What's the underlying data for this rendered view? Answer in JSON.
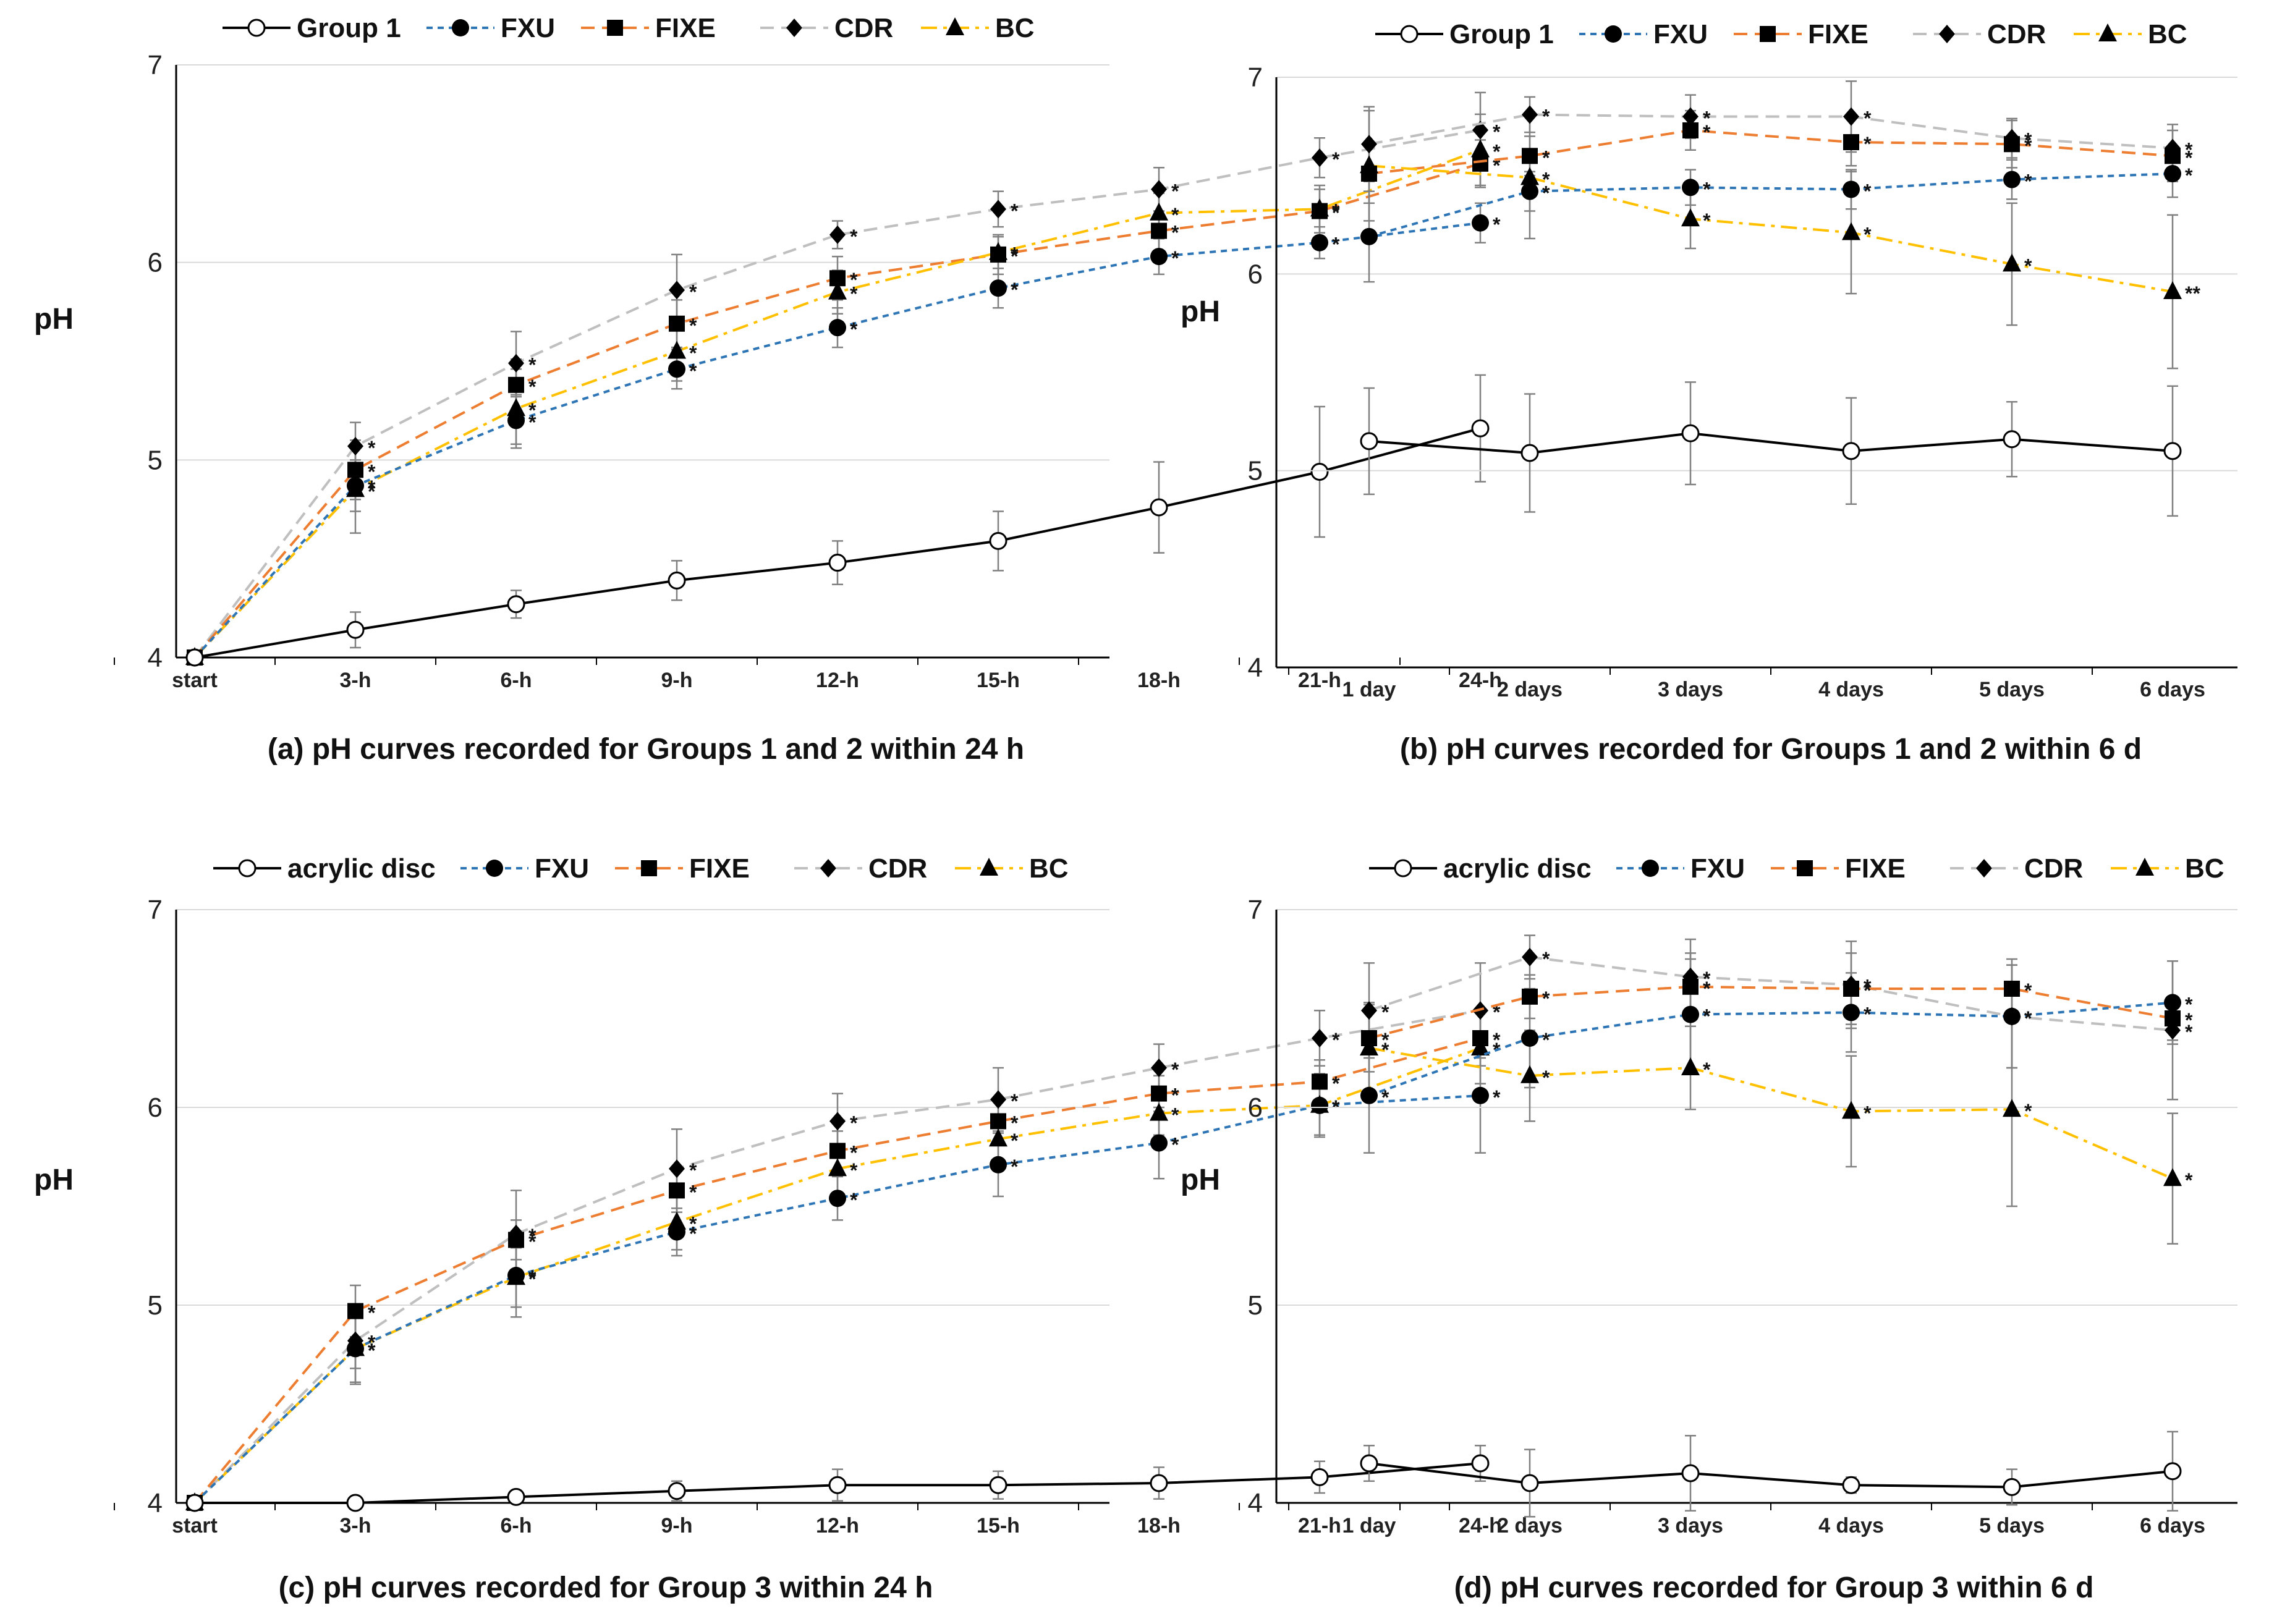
{
  "colors": {
    "group1": "#000000",
    "FXU": "#2e75b6",
    "FIXE": "#ed7d31",
    "CDR": "#bfbfbf",
    "BC": "#ffc000",
    "grid": "#d9d9d9",
    "errorbar": "#808080"
  },
  "chart_data": [
    {
      "id": "a",
      "type": "line",
      "caption": "(a) pH curves recorded for Groups 1 and 2 within 24 h",
      "ylabel": "pH",
      "ylim": [
        4,
        7
      ],
      "yticks": [
        "4",
        "5",
        "6",
        "7"
      ],
      "categories": [
        "start",
        "3-h",
        "6-h",
        "9-h",
        "12-h",
        "15-h",
        "18-h",
        "21-h",
        "24-h"
      ],
      "series": [
        {
          "key": "group1",
          "name": "Group  1",
          "marker": "circle-open",
          "dash": "solid",
          "values": [
            4.0,
            4.14,
            4.27,
            4.39,
            4.48,
            4.59,
            4.76,
            4.94,
            5.16
          ],
          "errors": [
            0,
            0.09,
            0.07,
            0.1,
            0.11,
            0.15,
            0.23,
            0.33,
            0.27
          ],
          "stars": [
            "",
            "",
            "",
            "",
            "",
            "",
            "",
            "",
            ""
          ]
        },
        {
          "key": "FXU",
          "name": "FXU",
          "marker": "circle",
          "dash": "dash",
          "values": [
            4.0,
            4.87,
            5.2,
            5.46,
            5.67,
            5.87,
            6.03,
            6.1,
            6.2
          ],
          "errors": [
            0,
            0.13,
            0.12,
            0.1,
            0.1,
            0.1,
            0.09,
            0.08,
            0.1
          ],
          "stars": [
            "",
            "*",
            "*",
            "*",
            "*",
            "*",
            "*",
            "*",
            "*"
          ]
        },
        {
          "key": "FIXE",
          "name": "FIXE",
          "marker": "square",
          "dash": "longdash",
          "values": [
            4.0,
            4.95,
            5.38,
            5.69,
            5.92,
            6.04,
            6.16,
            6.26,
            6.5
          ],
          "errors": [
            0,
            0.15,
            0.13,
            0.12,
            0.11,
            0.1,
            0.1,
            0.11,
            0.12
          ],
          "stars": [
            "",
            "*",
            "*",
            "*",
            "*",
            "*",
            "*",
            "*",
            "*"
          ]
        },
        {
          "key": "CDR",
          "name": "CDR",
          "marker": "diamond",
          "dash": "longdash",
          "values": [
            4.0,
            5.07,
            5.49,
            5.86,
            6.14,
            6.27,
            6.37,
            6.53,
            6.67
          ],
          "errors": [
            0,
            0.12,
            0.16,
            0.18,
            0.07,
            0.09,
            0.11,
            0.1,
            0.19
          ],
          "stars": [
            "",
            "*",
            "*",
            "*",
            "*",
            "*",
            "*",
            "*",
            "*"
          ]
        },
        {
          "key": "BC",
          "name": "BC",
          "marker": "triangle",
          "dash": "dashdot",
          "values": [
            4.0,
            4.85,
            5.26,
            5.55,
            5.85,
            6.05,
            6.25,
            6.27,
            6.57
          ],
          "errors": [
            0,
            0.22,
            0.2,
            0.15,
            0.11,
            0.08,
            0.1,
            0.12,
            0.18
          ],
          "stars": [
            "",
            "*",
            "*",
            "*",
            "*",
            "*",
            "*",
            "*",
            "*"
          ]
        }
      ]
    },
    {
      "id": "b",
      "type": "line",
      "caption": "(b) pH curves recorded for Groups 1 and 2 within 6 d",
      "ylabel": "pH",
      "ylim": [
        4,
        7
      ],
      "yticks": [
        "4",
        "5",
        "6",
        "7"
      ],
      "categories": [
        "1 day",
        "2 days",
        "3 days",
        "4 days",
        "5 days",
        "6 days"
      ],
      "series": [
        {
          "key": "group1",
          "name": "Group  1",
          "marker": "circle-open",
          "dash": "solid",
          "values": [
            5.15,
            5.09,
            5.19,
            5.1,
            5.16,
            5.1
          ],
          "errors": [
            0.27,
            0.3,
            0.26,
            0.27,
            0.19,
            0.33
          ],
          "stars": [
            "",
            "",
            "",
            "",
            "",
            ""
          ]
        },
        {
          "key": "FXU",
          "name": "FXU",
          "marker": "circle",
          "dash": "dash",
          "values": [
            6.19,
            6.42,
            6.44,
            6.43,
            6.48,
            6.51
          ],
          "errors": [
            0.23,
            0.1,
            0.09,
            0.1,
            0.1,
            0.12
          ],
          "stars": [
            "",
            "*",
            "*",
            "*",
            "*",
            "*"
          ]
        },
        {
          "key": "FIXE",
          "name": "FIXE",
          "marker": "square",
          "dash": "longdash",
          "values": [
            6.51,
            6.6,
            6.73,
            6.67,
            6.66,
            6.6
          ],
          "errors": [
            0.15,
            0.1,
            0.1,
            0.12,
            0.12,
            0.13
          ],
          "stars": [
            "",
            "*",
            "*",
            "*",
            "*",
            "*"
          ]
        },
        {
          "key": "CDR",
          "name": "CDR",
          "marker": "diamond",
          "dash": "longdash",
          "values": [
            6.66,
            6.81,
            6.8,
            6.8,
            6.69,
            6.64
          ],
          "errors": [
            0.19,
            0.09,
            0.11,
            0.18,
            0.1,
            0.12
          ],
          "stars": [
            "",
            "*",
            "*",
            "*",
            "*",
            "*"
          ]
        },
        {
          "key": "BC",
          "name": "BC",
          "marker": "triangle",
          "dash": "dashdot",
          "values": [
            6.55,
            6.49,
            6.28,
            6.21,
            6.05,
            5.91
          ],
          "errors": [
            0.28,
            0.31,
            0.15,
            0.31,
            0.31,
            0.39
          ],
          "stars": [
            "",
            "*",
            "*",
            "*",
            "*",
            "**"
          ]
        }
      ]
    },
    {
      "id": "c",
      "type": "line",
      "caption": "(c) pH curves recorded for Group 3 within 24 h",
      "ylabel": "pH",
      "ylim": [
        4,
        7
      ],
      "yticks": [
        "4",
        "5",
        "6",
        "7"
      ],
      "categories": [
        "start",
        "3-h",
        "6-h",
        "9-h",
        "12-h",
        "15-h",
        "18-h",
        "21-h",
        "24-h"
      ],
      "series": [
        {
          "key": "group1",
          "name": "acrylic disc",
          "marker": "circle-open",
          "dash": "solid",
          "values": [
            4.0,
            4.0,
            4.03,
            4.06,
            4.09,
            4.09,
            4.1,
            4.13,
            4.2
          ],
          "errors": [
            0,
            0,
            0.03,
            0.05,
            0.08,
            0.07,
            0.08,
            0.08,
            0.09
          ],
          "stars": [
            "",
            "",
            "",
            "",
            "",
            "",
            "",
            "",
            ""
          ]
        },
        {
          "key": "FXU",
          "name": "FXU",
          "marker": "circle",
          "dash": "dash",
          "values": [
            4.0,
            4.78,
            5.15,
            5.37,
            5.54,
            5.71,
            5.82,
            6.01,
            6.06
          ],
          "errors": [
            0,
            0.17,
            0.21,
            0.12,
            0.11,
            0.16,
            0.18,
            0.15,
            0.29
          ],
          "stars": [
            "",
            "*",
            "*",
            "*",
            "*",
            "*",
            "*",
            "*",
            "*"
          ]
        },
        {
          "key": "FIXE",
          "name": "FIXE",
          "marker": "square",
          "dash": "longdash",
          "values": [
            4.0,
            4.97,
            5.33,
            5.58,
            5.78,
            5.93,
            6.07,
            6.13,
            6.35
          ],
          "errors": [
            0,
            0.13,
            0.1,
            0.11,
            0.1,
            0.1,
            0.09,
            0.11,
            0.14
          ],
          "stars": [
            "",
            "*",
            "*",
            "*",
            "*",
            "*",
            "*",
            "*",
            "*"
          ]
        },
        {
          "key": "CDR",
          "name": "CDR",
          "marker": "diamond",
          "dash": "longdash",
          "values": [
            4.0,
            4.82,
            5.36,
            5.69,
            5.93,
            6.04,
            6.2,
            6.35,
            6.49
          ],
          "errors": [
            0,
            0.14,
            0.22,
            0.2,
            0.14,
            0.16,
            0.12,
            0.14,
            0.24
          ],
          "stars": [
            "",
            "*",
            "*",
            "*",
            "*",
            "*",
            "*",
            "*",
            "*"
          ]
        },
        {
          "key": "BC",
          "name": "BC",
          "marker": "triangle",
          "dash": "dashdot",
          "values": [
            4.0,
            4.78,
            5.14,
            5.42,
            5.69,
            5.84,
            5.97,
            6.01,
            6.3
          ],
          "errors": [
            0,
            0.18,
            0.15,
            0.14,
            0.12,
            0.12,
            0.11,
            0.16,
            0.18
          ],
          "stars": [
            "",
            "*",
            "*",
            "*",
            "*",
            "*",
            "*",
            "*",
            "*"
          ]
        }
      ]
    },
    {
      "id": "d",
      "type": "line",
      "caption": "(d) pH curves recorded for Group 3 within 6 d",
      "ylabel": "pH",
      "ylim": [
        4,
        7
      ],
      "yticks": [
        "4",
        "5",
        "6",
        "7"
      ],
      "categories": [
        "1 day",
        "2 days",
        "3 days",
        "4 days",
        "5 days",
        "6 days"
      ],
      "series": [
        {
          "key": "group1",
          "name": "acrylic disc",
          "marker": "circle-open",
          "dash": "solid",
          "values": [
            4.2,
            4.1,
            4.15,
            4.09,
            4.08,
            4.16
          ],
          "errors": [
            0.09,
            0.17,
            0.19,
            0.04,
            0.09,
            0.2
          ],
          "stars": [
            "",
            "",
            "",
            "",
            "",
            ""
          ]
        },
        {
          "key": "FXU",
          "name": "FXU",
          "marker": "circle",
          "dash": "dash",
          "values": [
            6.06,
            6.35,
            6.47,
            6.48,
            6.46,
            6.53
          ],
          "errors": [
            0.29,
            0.25,
            0.28,
            0.2,
            0.26,
            0.21
          ],
          "stars": [
            "*",
            "*",
            "*",
            "*",
            "*",
            "*"
          ]
        },
        {
          "key": "FIXE",
          "name": "FIXE",
          "marker": "square",
          "dash": "longdash",
          "values": [
            6.35,
            6.56,
            6.61,
            6.6,
            6.6,
            6.45
          ],
          "errors": [
            0.17,
            0.11,
            0.17,
            0.18,
            0.15,
            0.11
          ],
          "stars": [
            "*",
            "*",
            "*",
            "*",
            "*",
            "*"
          ]
        },
        {
          "key": "CDR",
          "name": "CDR",
          "marker": "diamond",
          "dash": "longdash",
          "values": [
            6.49,
            6.76,
            6.66,
            6.62,
            6.46,
            6.39
          ],
          "errors": [
            0.24,
            0.11,
            0.19,
            0.22,
            0.26,
            0.35
          ],
          "stars": [
            "*",
            "*",
            "*",
            "*",
            "*",
            "*"
          ]
        },
        {
          "key": "BC",
          "name": "BC",
          "marker": "triangle",
          "dash": "dashdot",
          "values": [
            6.3,
            6.16,
            6.2,
            5.98,
            5.99,
            5.64
          ],
          "errors": [
            0.23,
            0.23,
            0.21,
            0.28,
            0.49,
            0.33
          ],
          "stars": [
            "*",
            "*",
            "*",
            "*",
            "*",
            "*"
          ]
        }
      ]
    }
  ]
}
